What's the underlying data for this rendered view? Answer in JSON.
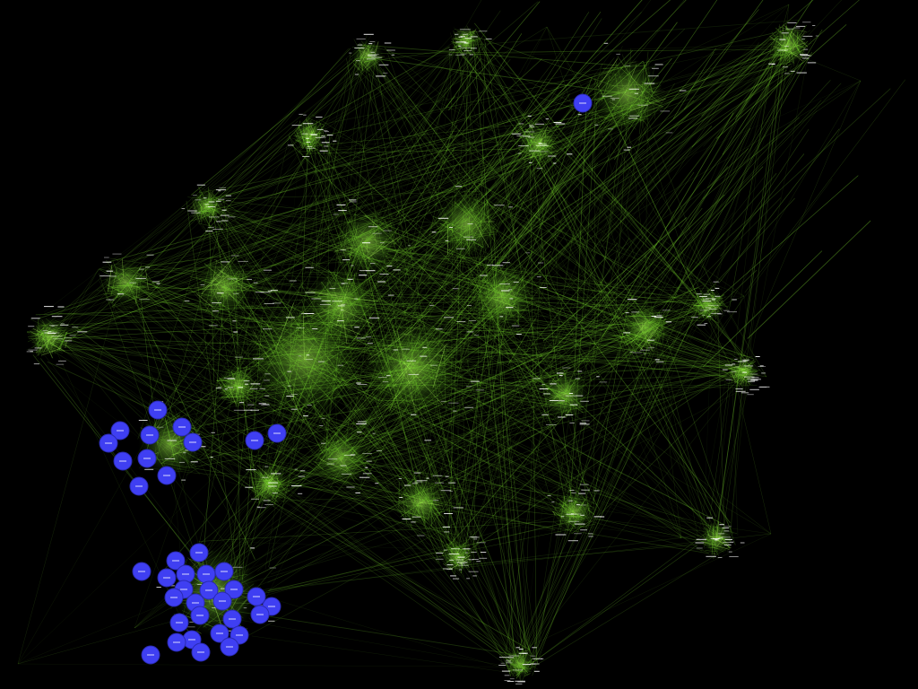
{
  "colors": {
    "background": "#000000",
    "edge": "#7ddc2e",
    "edge_bright": "#b6ff5a",
    "node_label": "#ffffff",
    "highlight_node_fill": "#3f3ff2",
    "highlight_node_stroke": "#2a2ab0"
  },
  "graph": {
    "type": "network-visualization",
    "highlighted_group_count": 3
  }
}
